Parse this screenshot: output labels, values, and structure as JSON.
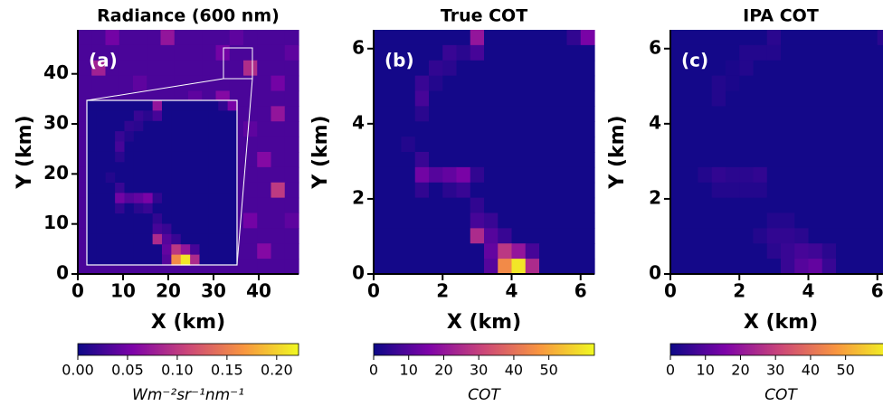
{
  "chart_data": [
    {
      "type": "heatmap",
      "title": "Radiance (600 nm)",
      "panel_label": "(a)",
      "xlabel": "X (km)",
      "ylabel": "Y (km)",
      "xlim": [
        0,
        48.8
      ],
      "ylim": [
        0,
        48.8
      ],
      "xticks": [
        0,
        10,
        20,
        30,
        40
      ],
      "yticks": [
        0,
        10,
        20,
        30,
        40
      ],
      "colormap": [
        "#0d0887",
        "#7e03a8",
        "#cc4778",
        "#f89540",
        "#f0f921"
      ],
      "z": [
        [
          0.03,
          0.03,
          0.05,
          0.03,
          0.03,
          0.03,
          0.07,
          0.03,
          0.03,
          0.03,
          0.03,
          0.04,
          0.03,
          0.03,
          0.03,
          0.03
        ],
        [
          0.03,
          0.03,
          0.03,
          0.03,
          0.03,
          0.03,
          0.03,
          0.03,
          0.03,
          0.03,
          0.05,
          0.03,
          0.03,
          0.03,
          0.03,
          0.04
        ],
        [
          0.03,
          0.08,
          0.03,
          0.03,
          0.03,
          0.03,
          0.03,
          0.03,
          0.03,
          0.03,
          0.03,
          0.03,
          0.09,
          0.03,
          0.03,
          0.03
        ],
        [
          0.03,
          0.03,
          0.03,
          0.03,
          0.04,
          0.03,
          0.03,
          0.03,
          0.03,
          0.03,
          0.03,
          0.03,
          0.03,
          0.03,
          0.05,
          0.03
        ],
        [
          0.03,
          0.03,
          0.03,
          0.03,
          0.03,
          0.03,
          0.03,
          0.03,
          0.04,
          0.03,
          0.06,
          0.03,
          0.03,
          0.03,
          0.03,
          0.03
        ],
        [
          0.03,
          0.03,
          0.03,
          0.03,
          0.03,
          0.03,
          0.03,
          0.03,
          0.03,
          0.03,
          0.03,
          0.03,
          0.03,
          0.03,
          0.07,
          0.03
        ],
        [
          0.03,
          0.03,
          0.03,
          0.03,
          0.03,
          0.03,
          0.03,
          0.03,
          0.03,
          0.03,
          0.03,
          0.03,
          0.04,
          0.03,
          0.03,
          0.03
        ],
        [
          0.03,
          0.03,
          0.03,
          0.03,
          0.03,
          0.03,
          0.03,
          0.03,
          0.03,
          0.03,
          0.03,
          0.03,
          0.03,
          0.03,
          0.03,
          0.03
        ],
        [
          0.03,
          0.03,
          0.03,
          0.03,
          0.03,
          0.03,
          0.03,
          0.03,
          0.03,
          0.03,
          0.03,
          0.03,
          0.03,
          0.06,
          0.03,
          0.03
        ],
        [
          0.03,
          0.03,
          0.03,
          0.03,
          0.03,
          0.03,
          0.03,
          0.03,
          0.03,
          0.03,
          0.03,
          0.03,
          0.03,
          0.03,
          0.03,
          0.03
        ],
        [
          0.03,
          0.03,
          0.03,
          0.03,
          0.03,
          0.03,
          0.03,
          0.03,
          0.03,
          0.03,
          0.03,
          0.03,
          0.03,
          0.03,
          0.1,
          0.03
        ],
        [
          0.03,
          0.03,
          0.03,
          0.03,
          0.03,
          0.03,
          0.03,
          0.03,
          0.03,
          0.03,
          0.03,
          0.03,
          0.03,
          0.03,
          0.03,
          0.03
        ],
        [
          0.03,
          0.03,
          0.03,
          0.03,
          0.03,
          0.03,
          0.03,
          0.03,
          0.03,
          0.03,
          0.03,
          0.03,
          0.05,
          0.03,
          0.03,
          0.04
        ],
        [
          0.03,
          0.03,
          0.03,
          0.03,
          0.03,
          0.03,
          0.03,
          0.03,
          0.03,
          0.03,
          0.03,
          0.03,
          0.03,
          0.03,
          0.03,
          0.03
        ],
        [
          0.03,
          0.03,
          0.03,
          0.03,
          0.03,
          0.03,
          0.03,
          0.03,
          0.03,
          0.03,
          0.03,
          0.03,
          0.03,
          0.06,
          0.03,
          0.03
        ],
        [
          0.03,
          0.03,
          0.03,
          0.03,
          0.03,
          0.03,
          0.03,
          0.03,
          0.03,
          0.03,
          0.03,
          0.03,
          0.03,
          0.03,
          0.03,
          0.03
        ]
      ],
      "colorbar": {
        "lim": [
          0,
          0.222
        ],
        "ticks": [
          {
            "value": 0,
            "label": "0.00"
          },
          {
            "value": 0.05,
            "label": "0.05"
          },
          {
            "value": 0.1,
            "label": "0.10"
          },
          {
            "value": 0.15,
            "label": "0.15"
          },
          {
            "value": 0.2,
            "label": "0.20"
          }
        ],
        "label": "Wm⁻²sr⁻¹nm⁻¹"
      }
    },
    {
      "type": "heatmap",
      "title": "True COT",
      "panel_label": "(b)",
      "xlabel": "X (km)",
      "ylabel": "Y (km)",
      "xlim": [
        0,
        6.4
      ],
      "ylim": [
        0,
        6.5
      ],
      "xticks": [
        0,
        2,
        4,
        6
      ],
      "yticks": [
        0,
        2,
        4,
        6
      ],
      "colormap": [
        "#0d0887",
        "#7e03a8",
        "#cc4778",
        "#f89540",
        "#f0f921"
      ],
      "z": [
        [
          1,
          1,
          1,
          1,
          1,
          1,
          1,
          20,
          1,
          1,
          1,
          1,
          1,
          1,
          5,
          15
        ],
        [
          1,
          1,
          1,
          1,
          1,
          6,
          4,
          8,
          1,
          1,
          1,
          1,
          1,
          1,
          1,
          1
        ],
        [
          1,
          1,
          1,
          1,
          5,
          4,
          1,
          1,
          1,
          1,
          1,
          1,
          1,
          1,
          1,
          1
        ],
        [
          1,
          1,
          1,
          6,
          3,
          1,
          1,
          1,
          1,
          1,
          1,
          1,
          1,
          1,
          1,
          1
        ],
        [
          1,
          1,
          1,
          8,
          1,
          1,
          1,
          1,
          1,
          1,
          1,
          1,
          1,
          1,
          1,
          1
        ],
        [
          1,
          1,
          1,
          4,
          1,
          1,
          1,
          1,
          1,
          1,
          1,
          1,
          1,
          1,
          1,
          1
        ],
        [
          1,
          1,
          1,
          1,
          1,
          1,
          1,
          1,
          1,
          1,
          1,
          1,
          1,
          1,
          1,
          1
        ],
        [
          1,
          1,
          3,
          1,
          1,
          1,
          1,
          1,
          1,
          1,
          1,
          1,
          1,
          1,
          1,
          1
        ],
        [
          1,
          1,
          1,
          6,
          1,
          1,
          1,
          1,
          1,
          1,
          1,
          1,
          1,
          1,
          1,
          1
        ],
        [
          1,
          1,
          1,
          14,
          10,
          12,
          15,
          5,
          1,
          1,
          1,
          1,
          1,
          1,
          1,
          1
        ],
        [
          1,
          1,
          1,
          5,
          1,
          4,
          6,
          1,
          1,
          1,
          1,
          1,
          1,
          1,
          1,
          1
        ],
        [
          1,
          1,
          1,
          1,
          1,
          1,
          1,
          5,
          1,
          1,
          1,
          1,
          1,
          1,
          1,
          1
        ],
        [
          1,
          1,
          1,
          1,
          1,
          1,
          1,
          8,
          6,
          1,
          1,
          1,
          1,
          1,
          1,
          1
        ],
        [
          1,
          1,
          1,
          1,
          1,
          1,
          1,
          25,
          10,
          6,
          1,
          1,
          1,
          1,
          1,
          1
        ],
        [
          1,
          1,
          1,
          1,
          1,
          1,
          1,
          1,
          12,
          28,
          20,
          8,
          1,
          1,
          1,
          1
        ],
        [
          1,
          1,
          1,
          1,
          1,
          1,
          1,
          1,
          10,
          45,
          60,
          25,
          1,
          1,
          1,
          1
        ]
      ],
      "colorbar": {
        "lim": [
          0,
          63
        ],
        "ticks": [
          0,
          10,
          20,
          30,
          40,
          50
        ],
        "label": "COT"
      }
    },
    {
      "type": "heatmap",
      "title": "IPA COT",
      "panel_label": "(c)",
      "xlabel": "X (km)",
      "ylabel": "Y (km)",
      "xlim": [
        0,
        6.4
      ],
      "ylim": [
        0,
        6.5
      ],
      "xticks": [
        0,
        2,
        4,
        6
      ],
      "yticks": [
        0,
        2,
        4,
        6
      ],
      "colormap": [
        "#0d0887",
        "#7e03a8",
        "#cc4778",
        "#f89540",
        "#f0f921"
      ],
      "z": [
        [
          1,
          1,
          1,
          1,
          1,
          1,
          1,
          4,
          1,
          1,
          1,
          1,
          1,
          1,
          1,
          4
        ],
        [
          1,
          1,
          1,
          1,
          1,
          3,
          3,
          3,
          1,
          1,
          1,
          1,
          1,
          1,
          1,
          1
        ],
        [
          1,
          1,
          1,
          1,
          2,
          3,
          1,
          1,
          1,
          1,
          1,
          1,
          1,
          1,
          1,
          1
        ],
        [
          1,
          1,
          1,
          3,
          2,
          1,
          1,
          1,
          1,
          1,
          1,
          1,
          1,
          1,
          1,
          1
        ],
        [
          1,
          1,
          1,
          3,
          1,
          1,
          1,
          1,
          1,
          1,
          1,
          1,
          1,
          1,
          1,
          1
        ],
        [
          1,
          1,
          1,
          1,
          1,
          1,
          1,
          1,
          1,
          1,
          1,
          1,
          1,
          1,
          1,
          1
        ],
        [
          1,
          1,
          1,
          1,
          1,
          1,
          1,
          1,
          1,
          1,
          1,
          1,
          1,
          1,
          1,
          1
        ],
        [
          1,
          1,
          1,
          1,
          1,
          1,
          1,
          1,
          1,
          1,
          1,
          1,
          1,
          1,
          1,
          1
        ],
        [
          1,
          1,
          1,
          1,
          1,
          1,
          1,
          1,
          1,
          1,
          1,
          1,
          1,
          1,
          1,
          1
        ],
        [
          1,
          1,
          3,
          5,
          4,
          4,
          5,
          1,
          1,
          1,
          1,
          1,
          1,
          1,
          1,
          1
        ],
        [
          1,
          1,
          1,
          3,
          3,
          3,
          3,
          1,
          1,
          1,
          1,
          1,
          1,
          1,
          1,
          1
        ],
        [
          1,
          1,
          1,
          1,
          1,
          1,
          1,
          1,
          1,
          1,
          1,
          1,
          1,
          1,
          1,
          1
        ],
        [
          1,
          1,
          1,
          1,
          1,
          1,
          1,
          3,
          3,
          1,
          1,
          1,
          1,
          1,
          1,
          1
        ],
        [
          1,
          1,
          1,
          1,
          1,
          1,
          3,
          5,
          5,
          4,
          1,
          1,
          1,
          1,
          1,
          1
        ],
        [
          1,
          1,
          1,
          1,
          1,
          1,
          1,
          4,
          6,
          8,
          7,
          4,
          1,
          1,
          1,
          1
        ],
        [
          1,
          1,
          1,
          1,
          1,
          1,
          1,
          1,
          6,
          10,
          12,
          6,
          1,
          1,
          1,
          1
        ]
      ],
      "colorbar": {
        "lim": [
          0,
          63
        ],
        "ticks": [
          0,
          10,
          20,
          30,
          40,
          50
        ],
        "label": "COT"
      }
    }
  ]
}
